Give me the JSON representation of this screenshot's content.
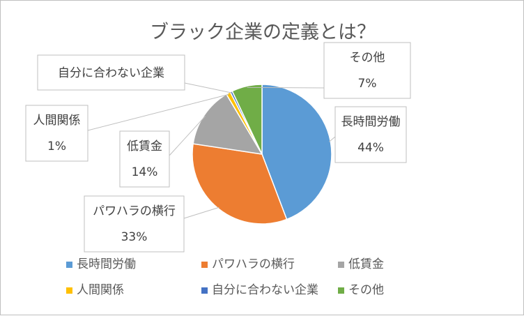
{
  "chart_data": {
    "type": "pie",
    "title": "ブラック企業の定義とは？",
    "slices": [
      {
        "label": "長時間労働",
        "value": 44,
        "value_label": "44%",
        "color": "#5b9bd5"
      },
      {
        "label": "パワハラの横行",
        "value": 33,
        "value_label": "33%",
        "color": "#ed7d31"
      },
      {
        "label": "低賃金",
        "value": 14,
        "value_label": "14%",
        "color": "#a5a5a5"
      },
      {
        "label": "人間関係",
        "value": 1,
        "value_label": "1%",
        "color": "#ffc000"
      },
      {
        "label": "自分に合わない企業",
        "value": 0.5,
        "value_label": "",
        "color": "#4472c4"
      },
      {
        "label": "その他",
        "value": 7,
        "value_label": "7%",
        "color": "#70ad47"
      }
    ],
    "legend_position": "bottom",
    "start_angle_deg": 0,
    "direction": "clockwise"
  }
}
